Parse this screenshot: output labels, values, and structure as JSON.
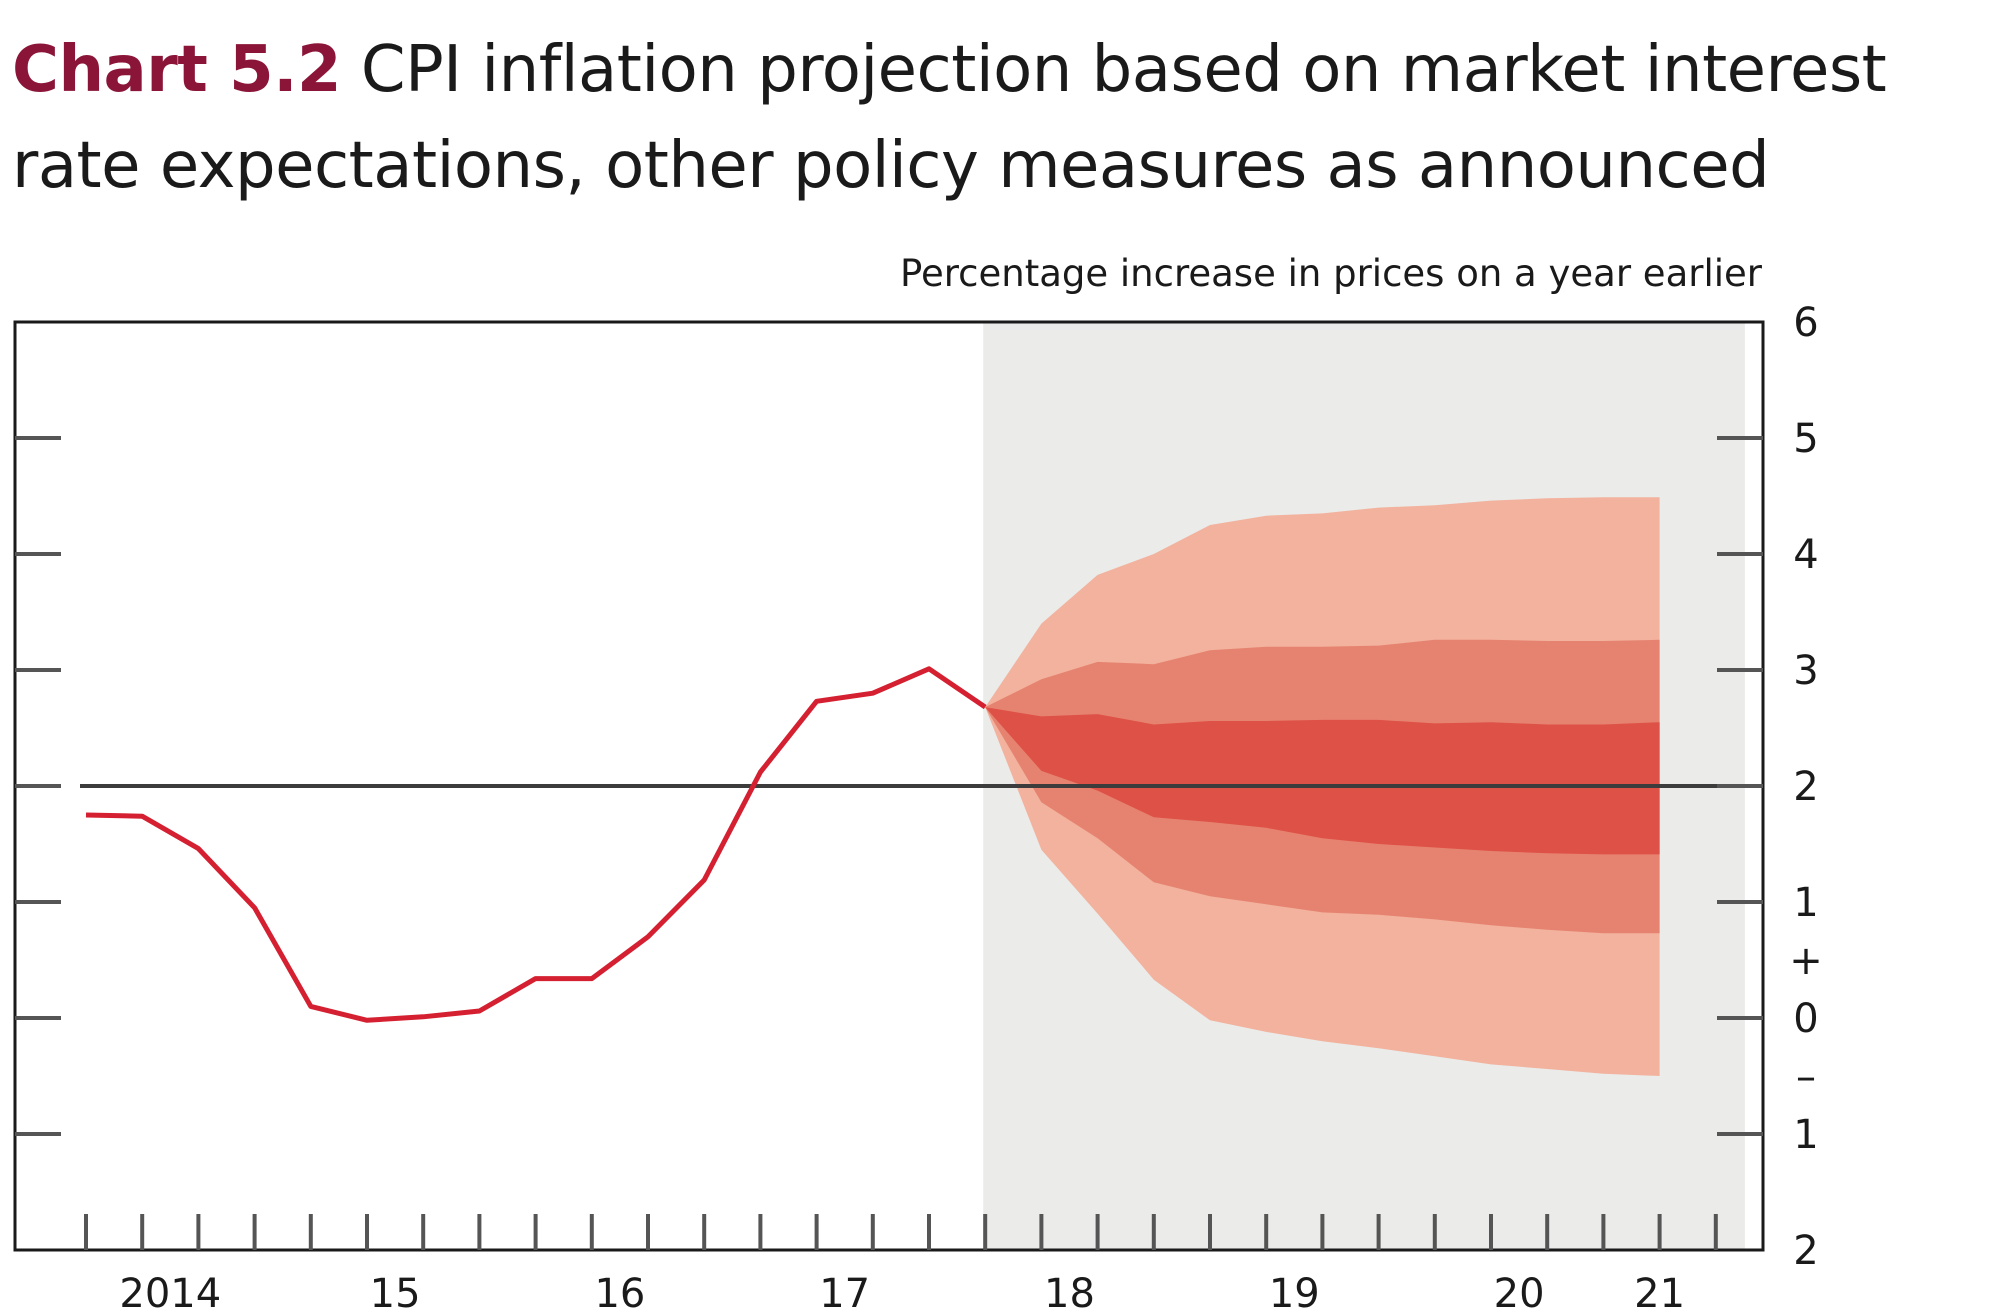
{
  "title_number": "Chart 5.2",
  "title_text": "CPI inflation projection based on market interest rate expectations, other policy measures as announced",
  "chart_data": {
    "type": "line",
    "title": "Chart 5.2 CPI inflation projection based on market interest rate expectations, other policy measures as announced",
    "ylabel": "Percentage increase in prices on a year earlier",
    "xlabel": "",
    "ylim": [
      -2,
      6
    ],
    "xlim": [
      2013.625,
      2021.0
    ],
    "y_ticks": [
      6,
      5,
      4,
      3,
      2,
      1,
      0,
      -1,
      -2
    ],
    "y_tick_labels": [
      "6",
      "5",
      "4",
      "3",
      "2",
      "1",
      "0",
      "1",
      "2"
    ],
    "y_sign_labels": {
      "plus": "+",
      "minus": "–"
    },
    "x_tick_labels": [
      {
        "label": "2014",
        "x": 2014.0
      },
      {
        "label": "15",
        "x": 2015.0
      },
      {
        "label": "16",
        "x": 2016.0
      },
      {
        "label": "17",
        "x": 2017.0
      },
      {
        "label": "18",
        "x": 2018.0
      },
      {
        "label": "19",
        "x": 2019.0
      },
      {
        "label": "20",
        "x": 2020.0
      },
      {
        "label": "21",
        "x": 2020.625
      }
    ],
    "projection_start": 2017.375,
    "target": 2.0,
    "grid": false,
    "colors": {
      "history_line": "#d42030",
      "target_line": "#3c3c3c",
      "projection_shade": "#ebebe9",
      "band_outer": "#f2b29d",
      "band_middle": "#e68370",
      "band_inner": "#de5147",
      "frame": "#1a1a1a"
    },
    "series": [
      {
        "values": [
          [
            2013.625,
            1.75
          ],
          [
            2013.875,
            1.74
          ],
          [
            2014.125,
            1.46
          ],
          [
            2014.375,
            0.95
          ],
          [
            2014.625,
            0.1
          ],
          [
            2014.875,
            -0.02
          ],
          [
            2015.125,
            0.01
          ],
          [
            2015.375,
            0.06
          ],
          [
            2015.625,
            0.34
          ],
          [
            2015.875,
            0.34
          ],
          [
            2016.125,
            0.7
          ],
          [
            2016.375,
            1.19
          ],
          [
            2016.625,
            2.12
          ],
          [
            2016.875,
            2.73
          ],
          [
            2017.125,
            2.8
          ],
          [
            2017.375,
            3.01
          ],
          [
            2017.625,
            2.68
          ]
        ]
      }
    ],
    "fan_bands": {
      "x": [
        2017.625,
        2017.875,
        2018.125,
        2018.375,
        2018.625,
        2018.875,
        2019.125,
        2019.375,
        2019.625,
        2019.875,
        2020.125,
        2020.375,
        2020.625
      ],
      "outer_upper": [
        2.68,
        3.4,
        3.82,
        4.0,
        4.25,
        4.33,
        4.35,
        4.4,
        4.42,
        4.46,
        4.48,
        4.49,
        4.49
      ],
      "middle_upper": [
        2.68,
        2.92,
        3.07,
        3.05,
        3.17,
        3.2,
        3.2,
        3.21,
        3.26,
        3.26,
        3.25,
        3.25,
        3.26
      ],
      "inner_upper": [
        2.68,
        2.6,
        2.62,
        2.53,
        2.56,
        2.56,
        2.57,
        2.57,
        2.54,
        2.55,
        2.53,
        2.53,
        2.55
      ],
      "inner_lower": [
        2.68,
        2.13,
        1.96,
        1.73,
        1.69,
        1.64,
        1.55,
        1.5,
        1.47,
        1.44,
        1.42,
        1.41,
        1.41
      ],
      "middle_lower": [
        2.68,
        1.86,
        1.55,
        1.17,
        1.05,
        0.98,
        0.91,
        0.89,
        0.85,
        0.8,
        0.76,
        0.73,
        0.73
      ],
      "outer_lower": [
        2.68,
        1.45,
        0.9,
        0.33,
        -0.02,
        -0.12,
        -0.2,
        -0.26,
        -0.33,
        -0.4,
        -0.44,
        -0.48,
        -0.5
      ]
    }
  }
}
